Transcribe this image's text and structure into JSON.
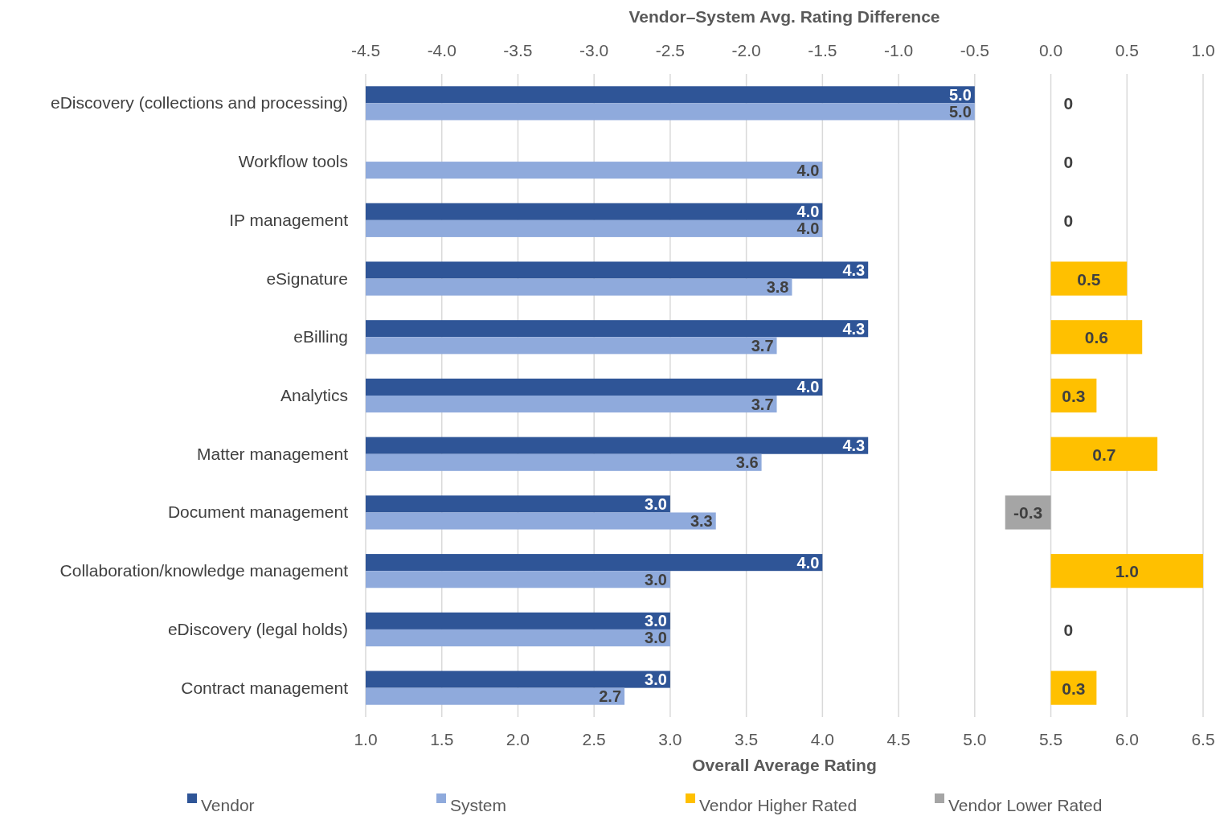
{
  "chart_data": {
    "type": "bar",
    "orientation": "horizontal",
    "title": "Vendor–System Avg. Rating Difference",
    "xlabel": "Overall Average Rating",
    "categories": [
      "eDiscovery (collections and processing)",
      "Workflow tools",
      "IP management",
      "eSignature",
      "eBilling",
      "Analytics",
      "Matter management",
      "Document management",
      "Collaboration/knowledge management",
      "eDiscovery (legal holds)",
      "Contract management"
    ],
    "series": [
      {
        "name": "Vendor",
        "color": "#2f5597",
        "values": [
          5.0,
          null,
          4.0,
          4.3,
          4.3,
          4.0,
          4.3,
          3.0,
          4.0,
          3.0,
          3.0
        ],
        "value_labels": [
          "5.0",
          null,
          "4.0",
          "4.3",
          "4.3",
          "4.0",
          "4.3",
          "3.0",
          "4.0",
          "3.0",
          "3.0"
        ]
      },
      {
        "name": "System",
        "color": "#8faadc",
        "values": [
          5.0,
          4.0,
          4.0,
          3.8,
          3.7,
          3.7,
          3.6,
          3.3,
          3.0,
          3.0,
          2.7
        ],
        "value_labels": [
          "5.0",
          "4.0",
          "4.0",
          "3.8",
          "3.7",
          "3.7",
          "3.6",
          "3.3",
          "3.0",
          "3.0",
          "2.7"
        ]
      },
      {
        "name": "Vendor Higher Rated",
        "color": "#ffc000",
        "axis": "x2",
        "values": [
          0,
          0,
          0,
          0.5,
          0.6,
          0.3,
          0.7,
          null,
          1.0,
          0,
          0.3
        ],
        "value_labels": [
          "0",
          "0",
          "0",
          "0.5",
          "0.6",
          "0.3",
          "0.7",
          null,
          "1.0",
          "0",
          "0.3"
        ]
      },
      {
        "name": "Vendor Lower Rated",
        "color": "#a5a5a5",
        "axis": "x2",
        "values": [
          null,
          null,
          null,
          null,
          null,
          null,
          null,
          -0.3,
          null,
          null,
          null
        ],
        "value_labels": [
          null,
          null,
          null,
          null,
          null,
          null,
          null,
          "-0.3",
          null,
          null,
          null
        ]
      }
    ],
    "xlim": [
      1.0,
      6.5
    ],
    "xticks": [
      {
        "value": 1,
        "label": "1.0"
      },
      {
        "value": 1.5,
        "label": "1.5"
      },
      {
        "value": 2,
        "label": "2.0"
      },
      {
        "value": 2.5,
        "label": "2.5"
      },
      {
        "value": 3,
        "label": "3.0"
      },
      {
        "value": 3.5,
        "label": "3.5"
      },
      {
        "value": 4,
        "label": "4.0"
      },
      {
        "value": 4.5,
        "label": "4.5"
      },
      {
        "value": 5,
        "label": "5.0"
      },
      {
        "value": 5.5,
        "label": "5.5"
      },
      {
        "value": 6,
        "label": "6.0"
      },
      {
        "value": 6.5,
        "label": "6.5"
      }
    ],
    "x2lim": [
      -4.5,
      1.0
    ],
    "x2ticks": [
      {
        "value": -4.5,
        "label": "-4.5"
      },
      {
        "value": -4,
        "label": "-4.0"
      },
      {
        "value": -3.5,
        "label": "-3.5"
      },
      {
        "value": -3,
        "label": "-3.0"
      },
      {
        "value": -2.5,
        "label": "-2.5"
      },
      {
        "value": -2,
        "label": "-2.0"
      },
      {
        "value": -1.5,
        "label": "-1.5"
      },
      {
        "value": -1,
        "label": "-1.0"
      },
      {
        "value": -0.5,
        "label": "-0.5"
      },
      {
        "value": 0,
        "label": "0.0"
      },
      {
        "value": 0.5,
        "label": "0.5"
      },
      {
        "value": 1,
        "label": "1.0"
      }
    ],
    "grid": "x",
    "legend": "bottom"
  }
}
